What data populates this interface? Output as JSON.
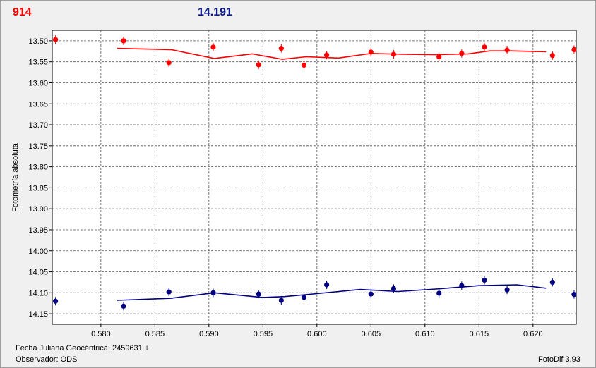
{
  "header": {
    "left_value": "914",
    "right_value": "14.191"
  },
  "footer": {
    "x_caption": "Fecha Juliana Geocéntrica: 2459631 +",
    "observer": "Observador: ODS",
    "software": "FotoDif 3.93"
  },
  "chart_data": {
    "type": "scatter",
    "xlim": [
      0.5755,
      0.624
    ],
    "ylim": [
      13.475,
      14.175
    ],
    "y_inverted": true,
    "ylabel": "Fotometría absoluta",
    "xlabel": "",
    "x_ticks": [
      "0.580",
      "0.585",
      "0.590",
      "0.595",
      "0.600",
      "0.605",
      "0.610",
      "0.615",
      "0.620"
    ],
    "x_tick_values": [
      0.58,
      0.585,
      0.59,
      0.595,
      0.6,
      0.605,
      0.61,
      0.615,
      0.62
    ],
    "y_ticks": [
      "13.50",
      "13.55",
      "13.60",
      "13.65",
      "13.70",
      "13.75",
      "13.80",
      "13.85",
      "13.90",
      "13.95",
      "14.00",
      "14.05",
      "14.10",
      "14.15"
    ],
    "y_tick_values": [
      13.5,
      13.55,
      13.6,
      13.65,
      13.7,
      13.75,
      13.8,
      13.85,
      13.9,
      13.95,
      14.0,
      14.05,
      14.1,
      14.15
    ],
    "grid": true,
    "series": [
      {
        "color": "#ff0000",
        "x": [
          0.5758,
          0.5821,
          0.5863,
          0.5904,
          0.5946,
          0.5967,
          0.5988,
          0.6009,
          0.605,
          0.6071,
          0.6113,
          0.6134,
          0.6155,
          0.6176,
          0.6218,
          0.6238
        ],
        "y": [
          13.497,
          13.5,
          13.552,
          13.515,
          13.557,
          13.518,
          13.558,
          13.534,
          13.527,
          13.532,
          13.538,
          13.53,
          13.515,
          13.522,
          13.535,
          13.521
        ],
        "trend_x": [
          0.5815,
          0.5865,
          0.5905,
          0.594,
          0.5968,
          0.599,
          0.602,
          0.605,
          0.608,
          0.611,
          0.614,
          0.616,
          0.618,
          0.6212
        ],
        "trend_y": [
          13.518,
          13.521,
          13.542,
          13.531,
          13.544,
          13.538,
          13.541,
          13.53,
          13.532,
          13.533,
          13.531,
          13.524,
          13.524,
          13.526
        ]
      },
      {
        "color": "#000080",
        "x": [
          0.5758,
          0.5821,
          0.5863,
          0.5904,
          0.5946,
          0.5967,
          0.5988,
          0.6009,
          0.605,
          0.6071,
          0.6113,
          0.6134,
          0.6155,
          0.6176,
          0.6218,
          0.6238
        ],
        "y": [
          14.12,
          14.132,
          14.098,
          14.1,
          14.103,
          14.118,
          14.111,
          14.081,
          14.103,
          14.09,
          14.101,
          14.083,
          14.07,
          14.093,
          14.075,
          14.104
        ],
        "trend_x": [
          0.5815,
          0.5865,
          0.5905,
          0.595,
          0.597,
          0.6,
          0.604,
          0.6075,
          0.611,
          0.615,
          0.6185,
          0.6212
        ],
        "trend_y": [
          14.118,
          14.113,
          14.1,
          14.111,
          14.109,
          14.102,
          14.092,
          14.097,
          14.091,
          14.083,
          14.081,
          14.089
        ]
      }
    ]
  }
}
